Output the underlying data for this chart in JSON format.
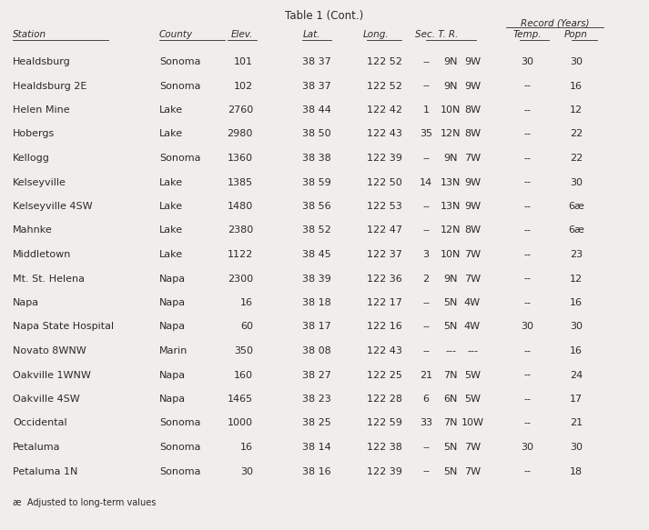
{
  "title": "Table 1 (Cont.)",
  "footnote": "æ  Adjusted to long-term values",
  "bg_color": "#f0eeea",
  "text_color": "#2a2a2a",
  "rows": [
    [
      "Healdsburg",
      "Sonoma",
      "101",
      "38 37",
      "122 52",
      "--",
      "9N",
      "9W",
      "30",
      "30"
    ],
    [
      "Healdsburg 2E",
      "Sonoma",
      "102",
      "38 37",
      "122 52",
      "--",
      "9N",
      "9W",
      "--",
      "16"
    ],
    [
      "Helen Mine",
      "Lake",
      "2760",
      "38 44",
      "122 42",
      "1",
      "10N",
      "8W",
      "--",
      "12"
    ],
    [
      "Hobergs",
      "Lake",
      "2980",
      "38 50",
      "122 43",
      "35",
      "12N",
      "8W",
      "--",
      "22"
    ],
    [
      "Kellogg",
      "Sonoma",
      "1360",
      "38 38",
      "122 39",
      "--",
      "9N",
      "7W",
      "--",
      "22"
    ],
    [
      "Kelseyville",
      "Lake",
      "1385",
      "38 59",
      "122 50",
      "14",
      "13N",
      "9W",
      "--",
      "30"
    ],
    [
      "Kelseyville 4SW",
      "Lake",
      "1480",
      "38 56",
      "122 53",
      "--",
      "13N",
      "9W",
      "--",
      "6æ"
    ],
    [
      "Mahnke",
      "Lake",
      "2380",
      "38 52",
      "122 47",
      "--",
      "12N",
      "8W",
      "--",
      "6æ"
    ],
    [
      "Middletown",
      "Lake",
      "1122",
      "38 45",
      "122 37",
      "3",
      "10N",
      "7W",
      "--",
      "23"
    ],
    [
      "Mt. St. Helena",
      "Napa",
      "2300",
      "38 39",
      "122 36",
      "2",
      "9N",
      "7W",
      "--",
      "12"
    ],
    [
      "Napa",
      "Napa",
      "16",
      "38 18",
      "122 17",
      "--",
      "5N",
      "4W",
      "--",
      "16"
    ],
    [
      "Napa State Hospital",
      "Napa",
      "60",
      "38 17",
      "122 16",
      "--",
      "5N",
      "4W",
      "30",
      "30"
    ],
    [
      "Novato 8WNW",
      "Marin",
      "350",
      "38 08",
      "122 43",
      "--",
      "---",
      "---",
      "--",
      "16"
    ],
    [
      "Oakville 1WNW",
      "Napa",
      "160",
      "38 27",
      "122 25",
      "21",
      "7N",
      "5W",
      "--",
      "24"
    ],
    [
      "Oakville 4SW",
      "Napa",
      "1465",
      "38 23",
      "122 28",
      "6",
      "6N",
      "5W",
      "--",
      "17"
    ],
    [
      "Occidental",
      "Sonoma",
      "1000",
      "38 25",
      "122 59",
      "33",
      "7N",
      "10W",
      "--",
      "21"
    ],
    [
      "Petaluma",
      "Sonoma",
      "16",
      "38 14",
      "122 38",
      "--",
      "5N",
      "7W",
      "30",
      "30"
    ],
    [
      "Petaluma 1N",
      "Sonoma",
      "30",
      "38 16",
      "122 39",
      "--",
      "5N",
      "7W",
      "--",
      "18"
    ]
  ]
}
